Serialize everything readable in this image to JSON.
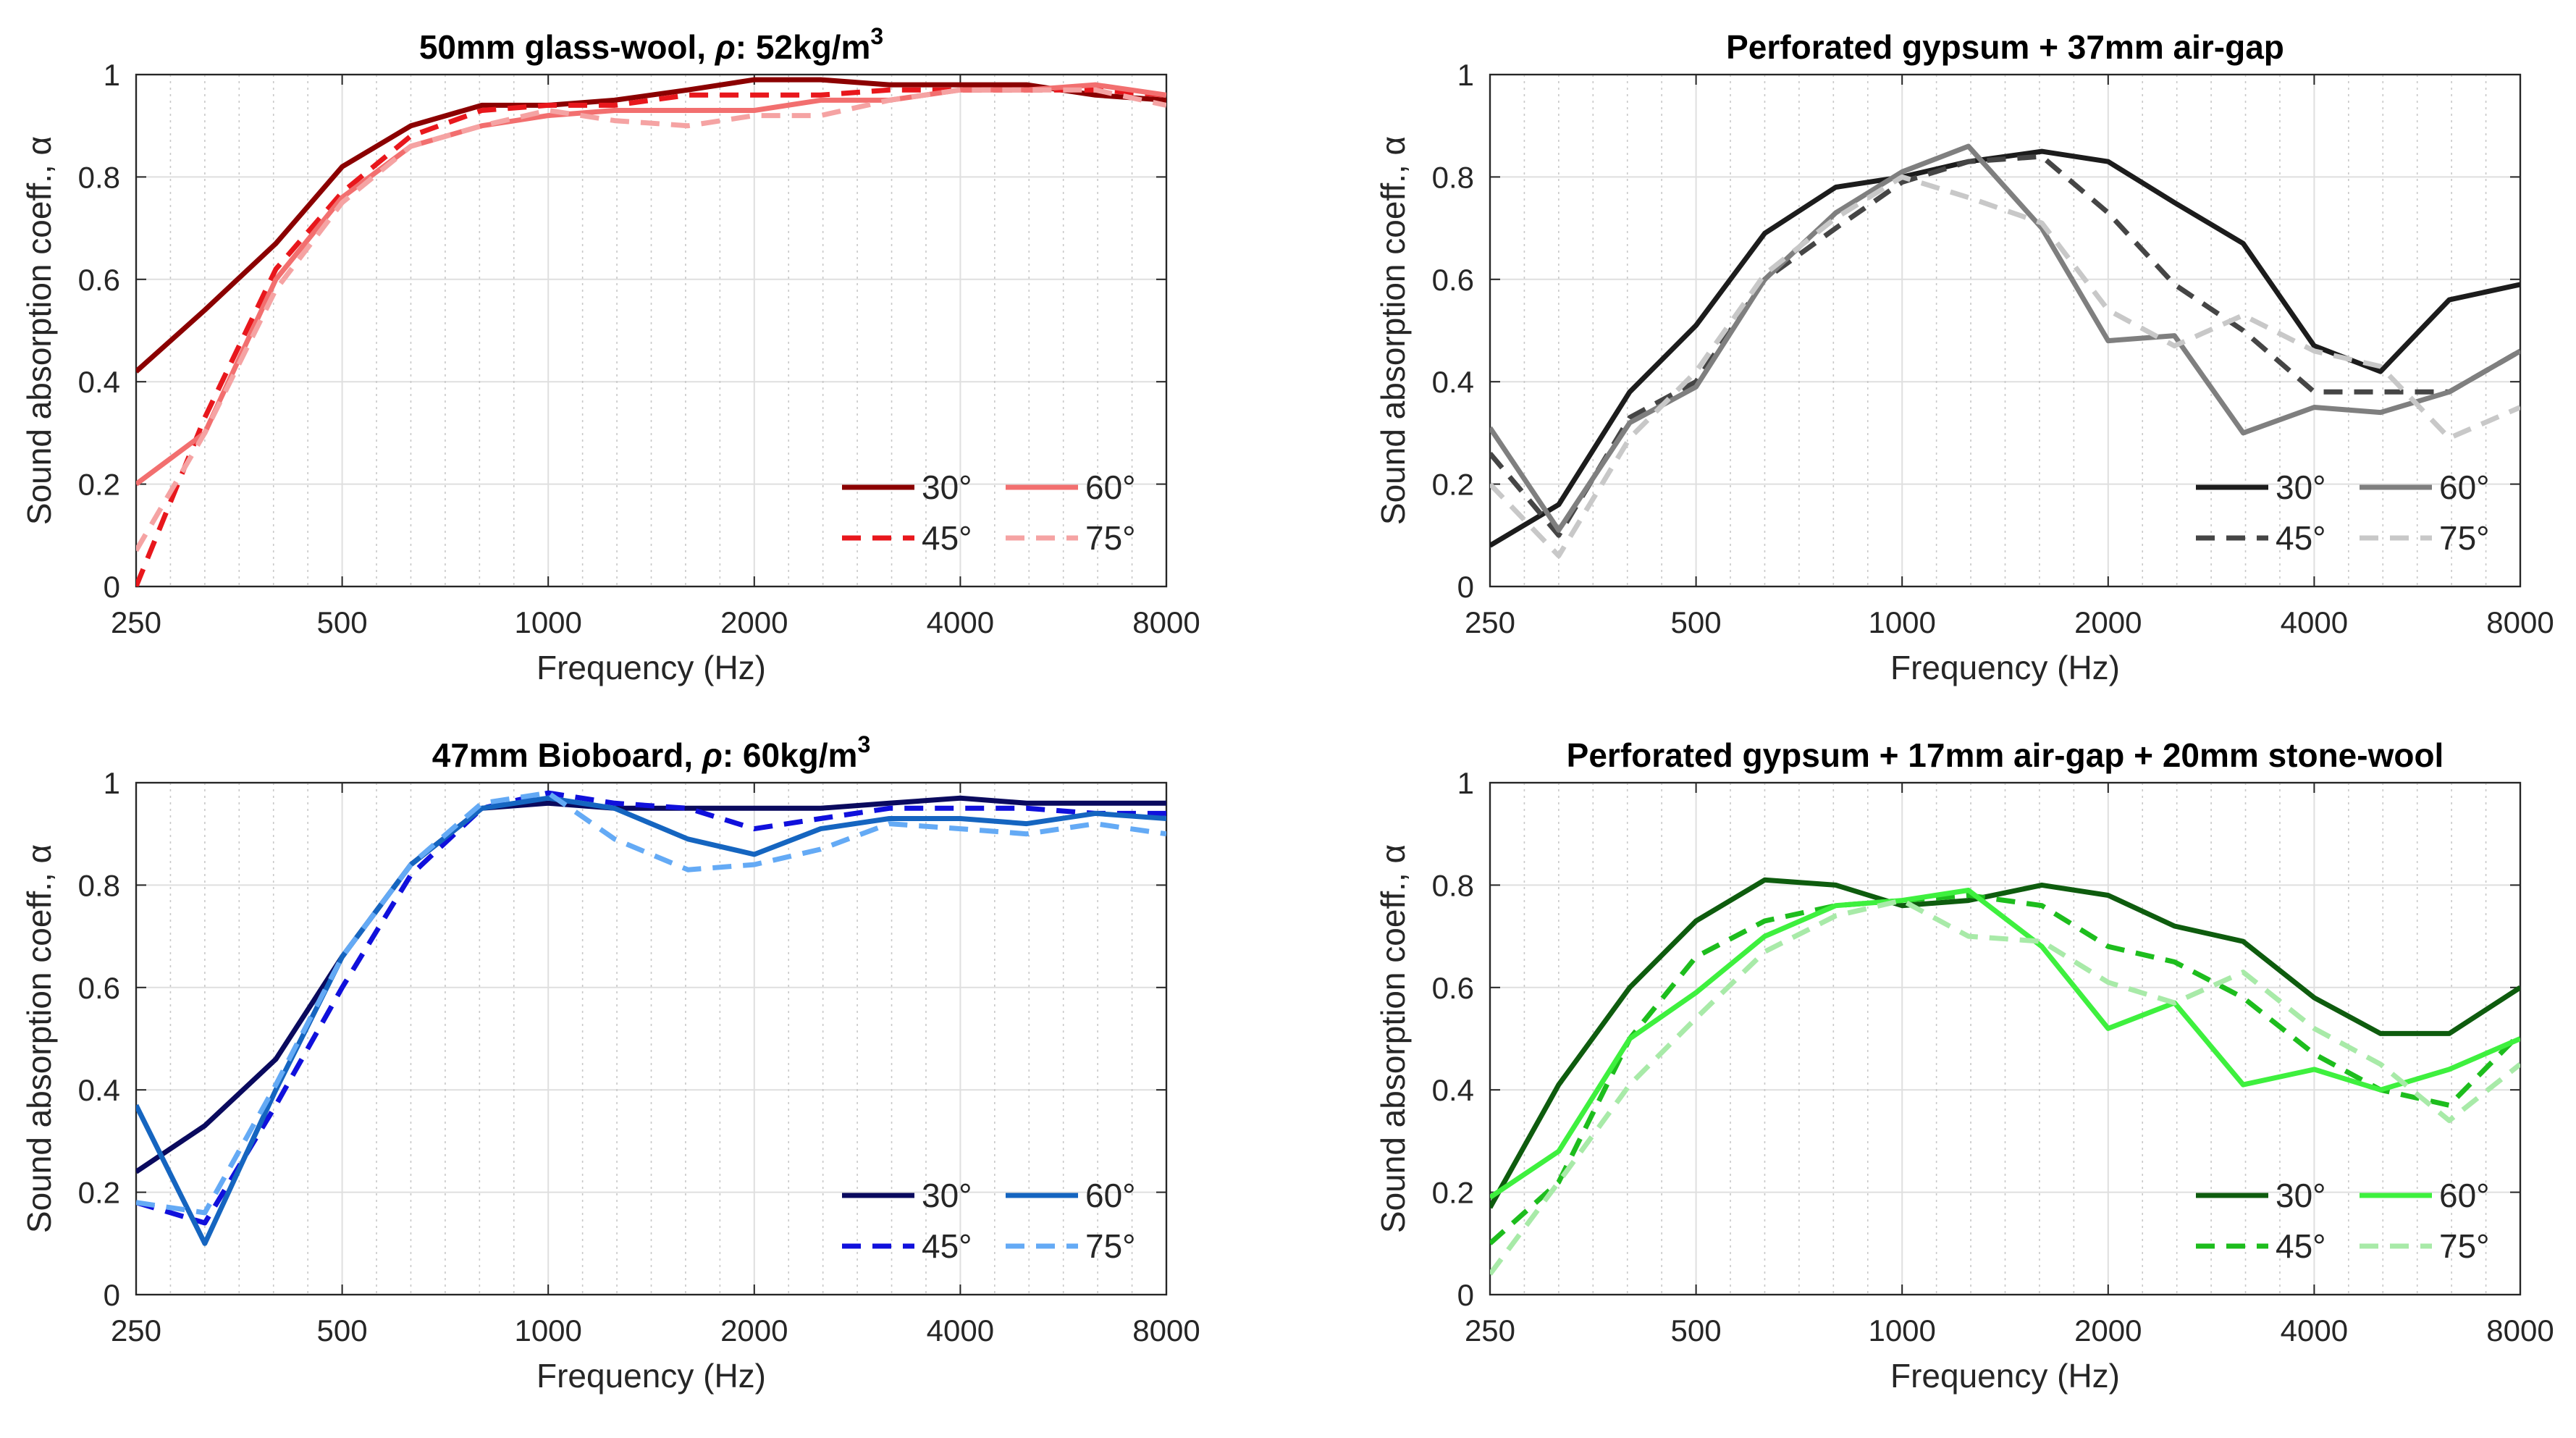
{
  "figure": {
    "legend_labels": [
      "30°",
      "45°",
      "60°",
      "75°"
    ]
  },
  "chart_data": [
    {
      "type": "line",
      "title": "50mm glass-wool, ρ: 52kg/m3",
      "title_main": "50mm glass-wool, ",
      "title_rho": "ρ",
      "title_rest": ": 52kg/m",
      "title_sup": "3",
      "xlabel": "Frequency (Hz)",
      "ylabel": "Sound absorption coeff., α",
      "xscale": "log2",
      "xlim": [
        250,
        8000
      ],
      "ylim": [
        0,
        1
      ],
      "xticks": [
        250,
        500,
        1000,
        2000,
        4000,
        8000
      ],
      "xtick_labels": [
        "250",
        "500",
        "1000",
        "2000",
        "4000",
        "8000"
      ],
      "yticks": [
        0,
        0.2,
        0.4,
        0.6,
        0.8,
        1
      ],
      "ytick_labels": [
        "0",
        "0.2",
        "0.4",
        "0.6",
        "0.8",
        "1"
      ],
      "legend_position": "bottom-right",
      "x": [
        250,
        315,
        400,
        500,
        630,
        800,
        1000,
        1250,
        1600,
        2000,
        2500,
        3150,
        4000,
        5000,
        6300,
        8000
      ],
      "series": [
        {
          "name": "30°",
          "color": "#8b0000",
          "dash": "solid",
          "values": [
            0.42,
            0.54,
            0.67,
            0.82,
            0.9,
            0.94,
            0.94,
            0.95,
            0.97,
            0.99,
            0.99,
            0.98,
            0.98,
            0.98,
            0.96,
            0.95
          ]
        },
        {
          "name": "45°",
          "color": "#e8171c",
          "dash": "dashed",
          "values": [
            0.0,
            0.33,
            0.62,
            0.77,
            0.88,
            0.93,
            0.94,
            0.94,
            0.96,
            0.96,
            0.96,
            0.97,
            0.97,
            0.97,
            0.97,
            0.96
          ]
        },
        {
          "name": "60°",
          "color": "#f26f6f",
          "dash": "solid",
          "values": [
            0.2,
            0.3,
            0.6,
            0.76,
            0.86,
            0.9,
            0.92,
            0.93,
            0.93,
            0.93,
            0.95,
            0.95,
            0.97,
            0.97,
            0.98,
            0.96
          ]
        },
        {
          "name": "75°",
          "color": "#f5a3a3",
          "dash": "dashed",
          "values": [
            0.07,
            0.3,
            0.58,
            0.75,
            0.86,
            0.9,
            0.93,
            0.91,
            0.9,
            0.92,
            0.92,
            0.95,
            0.97,
            0.97,
            0.97,
            0.94
          ]
        }
      ]
    },
    {
      "type": "line",
      "title": "Perforated gypsum + 37mm air-gap",
      "title_main": "Perforated gypsum + 37mm air-gap",
      "xlabel": "Frequency (Hz)",
      "ylabel": "Sound absorption coeff., α",
      "xscale": "log2",
      "xlim": [
        250,
        8000
      ],
      "ylim": [
        0,
        1
      ],
      "xticks": [
        250,
        500,
        1000,
        2000,
        4000,
        8000
      ],
      "xtick_labels": [
        "250",
        "500",
        "1000",
        "2000",
        "4000",
        "8000"
      ],
      "yticks": [
        0,
        0.2,
        0.4,
        0.6,
        0.8,
        1
      ],
      "ytick_labels": [
        "0",
        "0.2",
        "0.4",
        "0.6",
        "0.8",
        "1"
      ],
      "legend_position": "bottom-right",
      "x": [
        250,
        315,
        400,
        500,
        630,
        800,
        1000,
        1250,
        1600,
        2000,
        2500,
        3150,
        4000,
        5000,
        6300,
        8000
      ],
      "series": [
        {
          "name": "30°",
          "color": "#1c1c1c",
          "dash": "solid",
          "values": [
            0.08,
            0.16,
            0.38,
            0.51,
            0.69,
            0.78,
            0.8,
            0.83,
            0.85,
            0.83,
            0.75,
            0.67,
            0.47,
            0.42,
            0.56,
            0.59
          ]
        },
        {
          "name": "45°",
          "color": "#454545",
          "dash": "dashed",
          "values": [
            0.26,
            0.1,
            0.33,
            0.4,
            0.6,
            0.7,
            0.79,
            0.83,
            0.84,
            0.73,
            0.59,
            0.5,
            0.38,
            0.38,
            0.38,
            0.46
          ]
        },
        {
          "name": "60°",
          "color": "#7f7f7f",
          "dash": "solid",
          "values": [
            0.31,
            0.11,
            0.32,
            0.39,
            0.6,
            0.73,
            0.81,
            0.86,
            0.7,
            0.48,
            0.49,
            0.3,
            0.35,
            0.34,
            0.38,
            0.46
          ]
        },
        {
          "name": "75°",
          "color": "#c8c8c8",
          "dash": "dashed",
          "values": [
            0.2,
            0.06,
            0.29,
            0.42,
            0.61,
            0.72,
            0.8,
            0.76,
            0.71,
            0.54,
            0.47,
            0.53,
            0.46,
            0.43,
            0.29,
            0.35
          ]
        }
      ]
    },
    {
      "type": "line",
      "title": "47mm Bioboard, ρ: 60kg/m3",
      "title_main": "47mm Bioboard, ",
      "title_rho": "ρ",
      "title_rest": ": 60kg/m",
      "title_sup": "3",
      "xlabel": "Frequency (Hz)",
      "ylabel": "Sound absorption coeff., α",
      "xscale": "log2",
      "xlim": [
        250,
        8000
      ],
      "ylim": [
        0,
        1
      ],
      "xticks": [
        250,
        500,
        1000,
        2000,
        4000,
        8000
      ],
      "xtick_labels": [
        "250",
        "500",
        "1000",
        "2000",
        "4000",
        "8000"
      ],
      "yticks": [
        0,
        0.2,
        0.4,
        0.6,
        0.8,
        1
      ],
      "ytick_labels": [
        "0",
        "0.2",
        "0.4",
        "0.6",
        "0.8",
        "1"
      ],
      "legend_position": "bottom-right",
      "x": [
        250,
        315,
        400,
        500,
        630,
        800,
        1000,
        1250,
        1600,
        2000,
        2500,
        3150,
        4000,
        5000,
        6300,
        8000
      ],
      "series": [
        {
          "name": "30°",
          "color": "#0a0a5e",
          "dash": "solid",
          "values": [
            0.24,
            0.33,
            0.46,
            0.66,
            0.84,
            0.95,
            0.96,
            0.95,
            0.95,
            0.95,
            0.95,
            0.96,
            0.97,
            0.96,
            0.96,
            0.96
          ]
        },
        {
          "name": "45°",
          "color": "#1010dc",
          "dash": "dashed",
          "values": [
            0.18,
            0.14,
            0.37,
            0.6,
            0.82,
            0.95,
            0.98,
            0.96,
            0.95,
            0.91,
            0.93,
            0.95,
            0.95,
            0.95,
            0.94,
            0.94
          ]
        },
        {
          "name": "60°",
          "color": "#1565c0",
          "dash": "solid",
          "values": [
            0.37,
            0.1,
            0.4,
            0.66,
            0.84,
            0.95,
            0.97,
            0.95,
            0.89,
            0.86,
            0.91,
            0.93,
            0.93,
            0.92,
            0.94,
            0.93
          ]
        },
        {
          "name": "75°",
          "color": "#64aaf5",
          "dash": "dashed",
          "values": [
            0.18,
            0.16,
            0.41,
            0.66,
            0.84,
            0.96,
            0.98,
            0.89,
            0.83,
            0.84,
            0.87,
            0.92,
            0.91,
            0.9,
            0.92,
            0.9
          ]
        }
      ]
    },
    {
      "type": "line",
      "title": "Perforated gypsum + 17mm air-gap + 20mm stone-wool",
      "title_main": "Perforated gypsum + 17mm air-gap + 20mm stone-wool",
      "xlabel": "Frequency (Hz)",
      "ylabel": "Sound absorption coeff., α",
      "xscale": "log2",
      "xlim": [
        250,
        8000
      ],
      "ylim": [
        0,
        1
      ],
      "xticks": [
        250,
        500,
        1000,
        2000,
        4000,
        8000
      ],
      "xtick_labels": [
        "250",
        "500",
        "1000",
        "2000",
        "4000",
        "8000"
      ],
      "yticks": [
        0,
        0.2,
        0.4,
        0.6,
        0.8,
        1
      ],
      "ytick_labels": [
        "0",
        "0.2",
        "0.4",
        "0.6",
        "0.8",
        "1"
      ],
      "legend_position": "bottom-right",
      "x": [
        250,
        315,
        400,
        500,
        630,
        800,
        1000,
        1250,
        1600,
        2000,
        2500,
        3150,
        4000,
        5000,
        6300,
        8000
      ],
      "series": [
        {
          "name": "30°",
          "color": "#0e5c0e",
          "dash": "solid",
          "values": [
            0.17,
            0.41,
            0.6,
            0.73,
            0.81,
            0.8,
            0.76,
            0.77,
            0.8,
            0.78,
            0.72,
            0.69,
            0.58,
            0.51,
            0.51,
            0.6
          ]
        },
        {
          "name": "45°",
          "color": "#1dbd1d",
          "dash": "dashed",
          "values": [
            0.1,
            0.22,
            0.5,
            0.66,
            0.73,
            0.76,
            0.77,
            0.78,
            0.76,
            0.68,
            0.65,
            0.58,
            0.47,
            0.4,
            0.37,
            0.51
          ]
        },
        {
          "name": "60°",
          "color": "#3ef03e",
          "dash": "solid",
          "values": [
            0.19,
            0.28,
            0.5,
            0.59,
            0.7,
            0.76,
            0.77,
            0.79,
            0.68,
            0.52,
            0.57,
            0.41,
            0.44,
            0.4,
            0.44,
            0.5
          ]
        },
        {
          "name": "75°",
          "color": "#a8eaa8",
          "dash": "dashed",
          "values": [
            0.04,
            0.22,
            0.41,
            0.54,
            0.67,
            0.74,
            0.77,
            0.7,
            0.69,
            0.61,
            0.57,
            0.63,
            0.52,
            0.45,
            0.34,
            0.45
          ]
        }
      ]
    }
  ]
}
